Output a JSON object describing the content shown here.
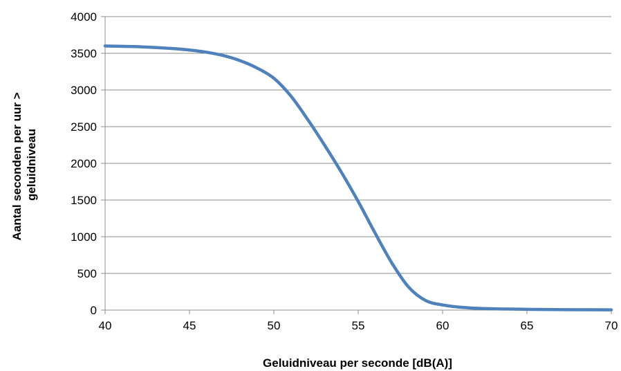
{
  "chart_data": {
    "type": "line",
    "title": "",
    "xlabel": "Geluidniveau per seconde [dB(A)]",
    "ylabel_lines": [
      "Aantal seconden per uur >",
      "geluidniveau"
    ],
    "xlim": [
      40,
      70
    ],
    "ylim": [
      0,
      4000
    ],
    "x_ticks": [
      40,
      45,
      50,
      55,
      60,
      65,
      70
    ],
    "y_ticks": [
      0,
      500,
      1000,
      1500,
      2000,
      2500,
      3000,
      3500,
      4000
    ],
    "grid": "horizontal",
    "legend": "none",
    "series": [
      {
        "color": "#4f81bd",
        "x": [
          40,
          42,
          44,
          45,
          46,
          47,
          48,
          49,
          50,
          51,
          52,
          53,
          54,
          55,
          56,
          57,
          58,
          59,
          60,
          61,
          62,
          63,
          64,
          65,
          66,
          68,
          70
        ],
        "y": [
          3600,
          3590,
          3565,
          3545,
          3515,
          3470,
          3400,
          3300,
          3160,
          2920,
          2600,
          2250,
          1880,
          1480,
          1050,
          640,
          310,
          130,
          70,
          40,
          25,
          18,
          14,
          11,
          8,
          5,
          3
        ]
      }
    ]
  }
}
